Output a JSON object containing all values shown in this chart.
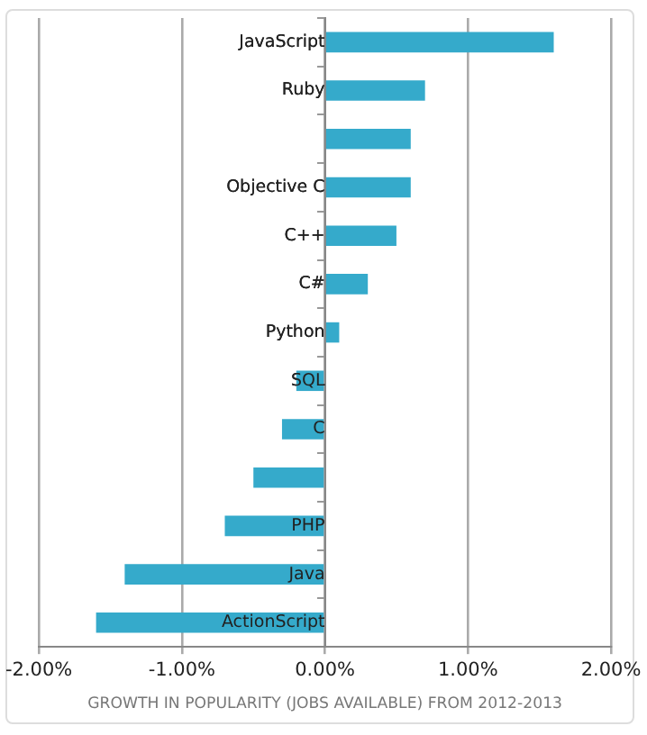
{
  "chart_data": {
    "type": "bar",
    "orientation": "horizontal",
    "categories": [
      "JavaScript",
      "Ruby",
      null,
      "Objective C",
      "C++",
      "C#",
      "Python",
      "SQL",
      "C",
      null,
      "PHP",
      "Java",
      "ActionScript"
    ],
    "values": [
      1.6,
      0.7,
      0.6,
      0.6,
      0.5,
      0.3,
      0.1,
      -0.2,
      -0.3,
      -0.5,
      -0.7,
      -1.4,
      -1.6
    ],
    "color": "#35aacb",
    "xlim": [
      -2,
      2
    ],
    "xticks": [
      {
        "value": -2,
        "label": "-2.00%"
      },
      {
        "value": -1,
        "label": "-1.00%"
      },
      {
        "value": 0,
        "label": "0.00%"
      },
      {
        "value": 1,
        "label": "1.00%"
      },
      {
        "value": 2,
        "label": "2.00%"
      }
    ],
    "xlabel": "GROWTH IN POPULARITY (JOBS AVAILABLE) FROM 2012-2013",
    "grid": "x",
    "legend": false
  }
}
